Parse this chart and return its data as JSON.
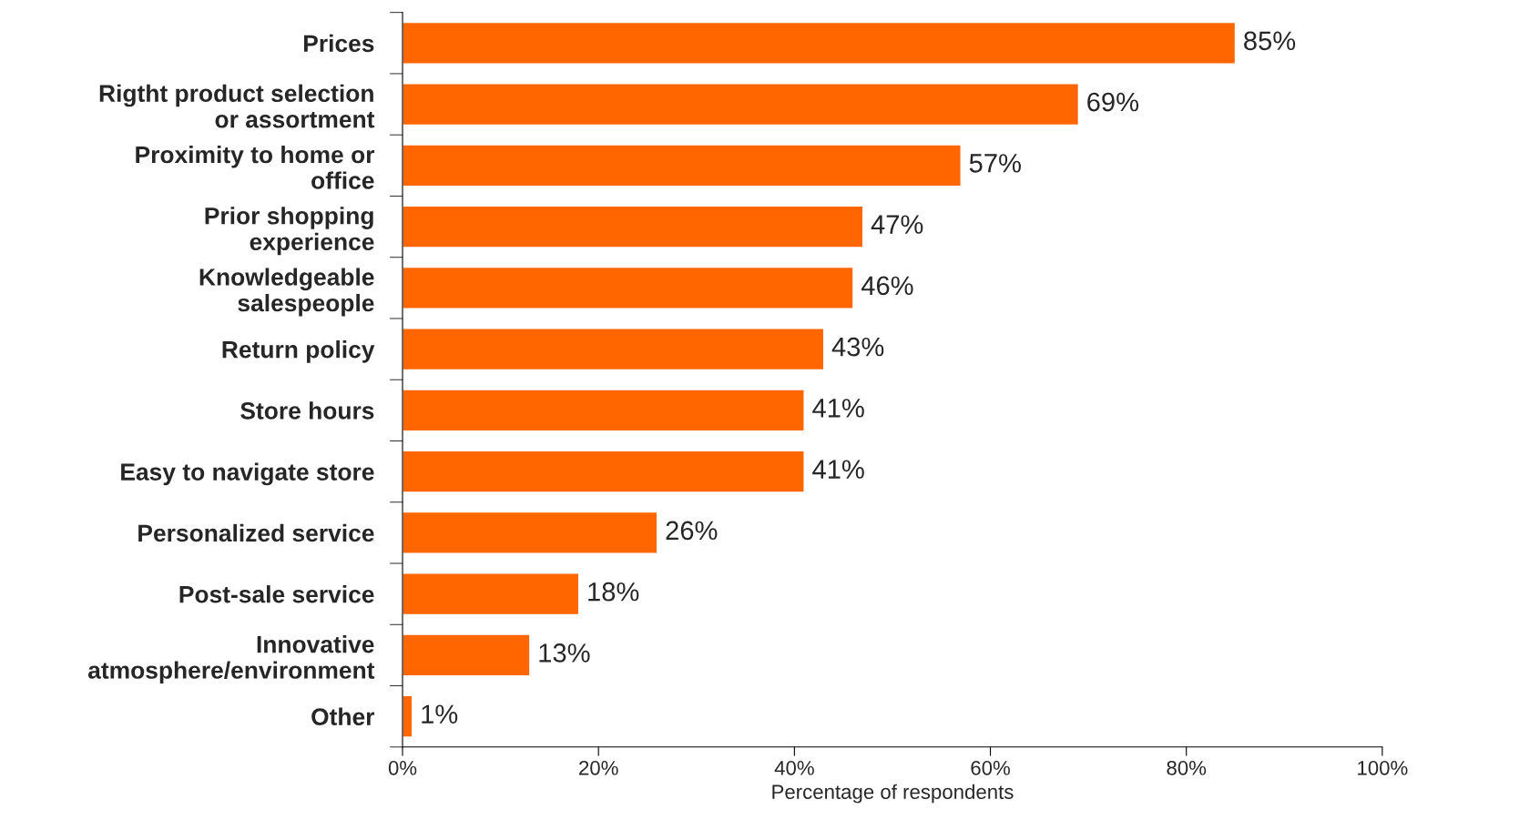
{
  "chart_data": {
    "type": "bar",
    "orientation": "horizontal",
    "categories": [
      "Prices",
      "Rigtht product selection\nor assortment",
      "Proximity to home or\noffice",
      "Prior shopping\nexperience",
      "Knowledgeable\nsalespeople",
      "Return policy",
      "Store hours",
      "Easy to navigate store",
      "Personalized service",
      "Post-sale service",
      "Innovative\natmosphere/environment",
      "Other"
    ],
    "values": [
      85,
      69,
      57,
      47,
      46,
      43,
      41,
      41,
      26,
      18,
      13,
      1
    ],
    "value_labels": [
      "85%",
      "69%",
      "57%",
      "47%",
      "46%",
      "43%",
      "41%",
      "41%",
      "26%",
      "18%",
      "13%",
      "1%"
    ],
    "color": "#ff6600",
    "xlabel": "Percentage of respondents",
    "xlim": [
      0,
      100
    ],
    "xticks": [
      {
        "value": 0,
        "label": "0%"
      },
      {
        "value": 20,
        "label": "20%"
      },
      {
        "value": 40,
        "label": "40%"
      },
      {
        "value": 60,
        "label": "60%"
      },
      {
        "value": 80,
        "label": "80%"
      },
      {
        "value": 100,
        "label": "100%"
      }
    ],
    "grid": false,
    "legend": false
  }
}
